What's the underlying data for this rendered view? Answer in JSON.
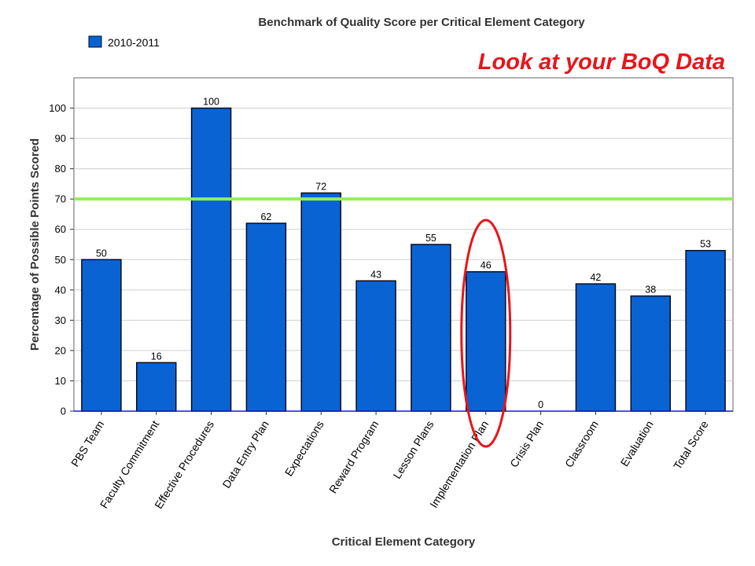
{
  "colors": {
    "bar": "#0a63d2",
    "bar_stroke": "#0a0a1e",
    "benchmark_line": "#8fef5f",
    "callout": "#e8151b",
    "highlight_ellipse": "#e8151b",
    "grid": "#cfcfcf",
    "x_axis": "#1a1adc"
  },
  "callout_text": "Look at your BoQ Data",
  "chart_data": {
    "type": "bar",
    "title": "Benchmark of Quality Score per Critical Element Category",
    "xlabel": "Critical Element Category",
    "ylabel": "Percentage of Possible Points Scored",
    "ylim": [
      0,
      110
    ],
    "yticks": [
      0,
      10,
      20,
      30,
      40,
      50,
      60,
      70,
      80,
      90,
      100
    ],
    "grid": true,
    "legend_position": "top-left",
    "categories": [
      "PBS Team",
      "Faculty Commitment",
      "Effective Procedures",
      "Data Entry Plan",
      "Expectations",
      "Reward Program",
      "Lesson Plans",
      "Implementation Plan",
      "Crisis Plan",
      "Classroom",
      "Evaluation",
      "Total Score"
    ],
    "series": [
      {
        "name": "2010-2011",
        "values": [
          50,
          16,
          100,
          62,
          72,
          43,
          55,
          46,
          0,
          42,
          38,
          53
        ]
      }
    ],
    "benchmark_line": 70,
    "highlighted_category": "Implementation Plan"
  }
}
